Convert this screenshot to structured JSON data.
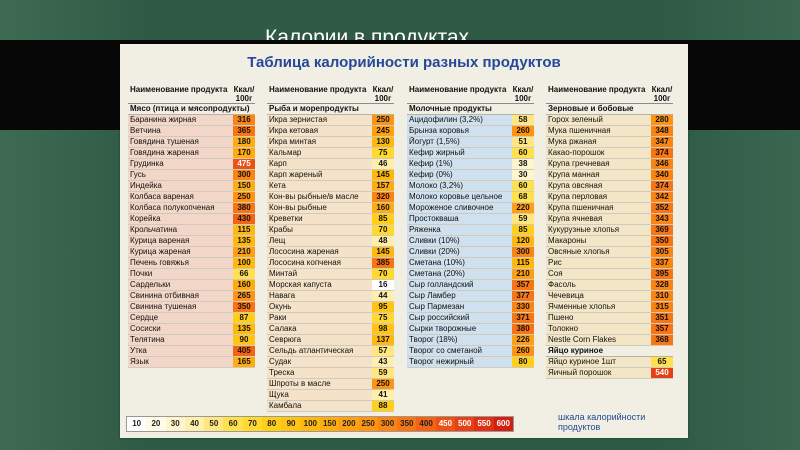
{
  "slide": {
    "title": "Калории в продуктах"
  },
  "table": {
    "title": "Таблица калорийности разных продуктов",
    "columns": [
      {
        "key": "meat",
        "header_name": "Наименование продукта",
        "header_kcal": "Ккал/ 100г",
        "categories": [
          {
            "title": "Мясо (птица и мясопродукты)",
            "rows": [
              {
                "name": "Баранина жирная",
                "kcal": "316"
              },
              {
                "name": "Ветчина",
                "kcal": "365"
              },
              {
                "name": "Говядина тушеная",
                "kcal": "180"
              },
              {
                "name": "Говядина жареная",
                "kcal": "170"
              },
              {
                "name": "Грудинка",
                "kcal": "475"
              },
              {
                "name": "Гусь",
                "kcal": "300"
              },
              {
                "name": "Индейка",
                "kcal": "150"
              },
              {
                "name": "Колбаса вареная",
                "kcal": "250"
              },
              {
                "name": "Колбаса полукопченая",
                "kcal": "380"
              },
              {
                "name": "Корейка",
                "kcal": "430"
              },
              {
                "name": "Крольчатина",
                "kcal": "115"
              },
              {
                "name": "Курица вареная",
                "kcal": "135"
              },
              {
                "name": "Курица жареная",
                "kcal": "210"
              },
              {
                "name": "Печень говяжья",
                "kcal": "100"
              },
              {
                "name": "Почки",
                "kcal": "66"
              },
              {
                "name": "Сардельки",
                "kcal": "160"
              },
              {
                "name": "Свинина отбивная",
                "kcal": "265"
              },
              {
                "name": "Свинина тушеная",
                "kcal": "350"
              },
              {
                "name": "Сердце",
                "kcal": "87"
              },
              {
                "name": "Сосиски",
                "kcal": "135"
              },
              {
                "name": "Телятина",
                "kcal": "90"
              },
              {
                "name": "Утка",
                "kcal": "405"
              },
              {
                "name": "Язык",
                "kcal": "165"
              }
            ]
          }
        ]
      },
      {
        "key": "fish",
        "header_name": "Наименование продукта",
        "header_kcal": "Ккал/ 100г",
        "categories": [
          {
            "title": "Рыба и морепродукты",
            "rows": [
              {
                "name": "Икра зернистая",
                "kcal": "250"
              },
              {
                "name": "Икра кетовая",
                "kcal": "245"
              },
              {
                "name": "Икра минтая",
                "kcal": "130"
              },
              {
                "name": "Кальмар",
                "kcal": "75"
              },
              {
                "name": "Карп",
                "kcal": "46"
              },
              {
                "name": "Карп жареный",
                "kcal": "145"
              },
              {
                "name": "Кета",
                "kcal": "157"
              },
              {
                "name": "Кон-вы рыбные/в масле",
                "kcal": "320"
              },
              {
                "name": "Кон-вы рыбные",
                "kcal": "160"
              },
              {
                "name": "Креветки",
                "kcal": "85"
              },
              {
                "name": "Крабы",
                "kcal": "70"
              },
              {
                "name": "Лещ",
                "kcal": "48"
              },
              {
                "name": "Лососина жареная",
                "kcal": "145"
              },
              {
                "name": "Лососина копченая",
                "kcal": "385"
              },
              {
                "name": "Минтай",
                "kcal": "70"
              },
              {
                "name": "Морская капуста",
                "kcal": "16"
              },
              {
                "name": "Навага",
                "kcal": "44"
              },
              {
                "name": "Окунь",
                "kcal": "95"
              },
              {
                "name": "Раки",
                "kcal": "75"
              },
              {
                "name": "Салака",
                "kcal": "98"
              },
              {
                "name": "Севрюга",
                "kcal": "137"
              },
              {
                "name": "Сельдь атлантическая",
                "kcal": "57"
              },
              {
                "name": "Судак",
                "kcal": "43"
              },
              {
                "name": "Треска",
                "kcal": "59"
              },
              {
                "name": "Шпроты в масле",
                "kcal": "250"
              },
              {
                "name": "Щука",
                "kcal": "41"
              },
              {
                "name": "Камбала",
                "kcal": "88"
              }
            ]
          }
        ]
      },
      {
        "key": "dairy",
        "header_name": "Наименование продукта",
        "header_kcal": "Ккал/ 100г",
        "categories": [
          {
            "title": "Молочные продукты",
            "rows": [
              {
                "name": "Ацидофилин (3,2%)",
                "kcal": "58"
              },
              {
                "name": "Брынза коровья",
                "kcal": "260"
              },
              {
                "name": "Йогурт (1,5%)",
                "kcal": "51"
              },
              {
                "name": "Кефир жирный",
                "kcal": "60"
              },
              {
                "name": "Кефир (1%)",
                "kcal": "38"
              },
              {
                "name": "Кефир (0%)",
                "kcal": "30"
              },
              {
                "name": "Молоко (3,2%)",
                "kcal": "60"
              },
              {
                "name": "Молоко коровье цельное",
                "kcal": "68"
              },
              {
                "name": "Мороженое сливочное",
                "kcal": "220"
              },
              {
                "name": "Простокваша",
                "kcal": "59"
              },
              {
                "name": "Ряженка",
                "kcal": "85"
              },
              {
                "name": "Сливки (10%)",
                "kcal": "120"
              },
              {
                "name": "Сливки (20%)",
                "kcal": "300"
              },
              {
                "name": "Сметана (10%)",
                "kcal": "115"
              },
              {
                "name": "Сметана (20%)",
                "kcal": "210"
              },
              {
                "name": "Сыр голландский",
                "kcal": "357"
              },
              {
                "name": "Сыр Ламбер",
                "kcal": "377"
              },
              {
                "name": "Сыр Пармезан",
                "kcal": "330"
              },
              {
                "name": "Сыр российский",
                "kcal": "371"
              },
              {
                "name": "Сырки творожные",
                "kcal": "380"
              },
              {
                "name": "Творог (18%)",
                "kcal": "226"
              },
              {
                "name": "Творог со сметаной",
                "kcal": "260"
              },
              {
                "name": "Творог нежирный",
                "kcal": "80"
              }
            ]
          }
        ]
      },
      {
        "key": "grain",
        "header_name": "Наименование продукта",
        "header_kcal": "Ккал/ 100г",
        "categories": [
          {
            "title": "Зерновые и бобовые",
            "rows": [
              {
                "name": "Горох зеленый",
                "kcal": "280"
              },
              {
                "name": "Мука пшеничная",
                "kcal": "348"
              },
              {
                "name": "Мука ржаная",
                "kcal": "347"
              },
              {
                "name": "Какао-порошок",
                "kcal": "374"
              },
              {
                "name": "Крупа гречневая",
                "kcal": "346"
              },
              {
                "name": "Крупа манная",
                "kcal": "340"
              },
              {
                "name": "Крупа овсяная",
                "kcal": "374"
              },
              {
                "name": "Крупа перловая",
                "kcal": "342"
              },
              {
                "name": "Крупа пшеничная",
                "kcal": "352"
              },
              {
                "name": "Крупа ячневая",
                "kcal": "343"
              },
              {
                "name": "Кукурузные хлопья",
                "kcal": "369"
              },
              {
                "name": "Макароны",
                "kcal": "350"
              },
              {
                "name": "Овсяные хлопья",
                "kcal": "305"
              },
              {
                "name": "Рис",
                "kcal": "337"
              },
              {
                "name": "Соя",
                "kcal": "395"
              },
              {
                "name": "Фасоль",
                "kcal": "328"
              },
              {
                "name": "Чечевица",
                "kcal": "310"
              },
              {
                "name": "Ячменные хлопья",
                "kcal": "315"
              },
              {
                "name": "Пшено",
                "kcal": "351"
              },
              {
                "name": "Толокно",
                "kcal": "357"
              },
              {
                "name": "Nestle Corn Flakes",
                "kcal": "368"
              }
            ]
          },
          {
            "title": "Яйцо куриное",
            "rows": [
              {
                "name": "Яйцо куриное 1шт",
                "kcal": "65"
              },
              {
                "name": "Яичный порошок",
                "kcal": "540"
              }
            ]
          }
        ]
      }
    ],
    "scale": {
      "values": [
        "10",
        "20",
        "30",
        "40",
        "50",
        "60",
        "70",
        "80",
        "90",
        "100",
        "150",
        "200",
        "250",
        "300",
        "350",
        "400",
        "450",
        "500",
        "550",
        "600"
      ],
      "colors": [
        "#ffffff",
        "#fffbe6",
        "#fff5cc",
        "#ffefad",
        "#ffe680",
        "#ffe14d",
        "#ffd92e",
        "#ffcf1a",
        "#ffc414",
        "#ffb80f",
        "#ffac10",
        "#ffa012",
        "#ff9413",
        "#fb8514",
        "#f77515",
        "#f26316",
        "#ec5216",
        "#e54116",
        "#dd3014",
        "#d22010"
      ],
      "label": "шкала калорийности продуктов"
    }
  }
}
